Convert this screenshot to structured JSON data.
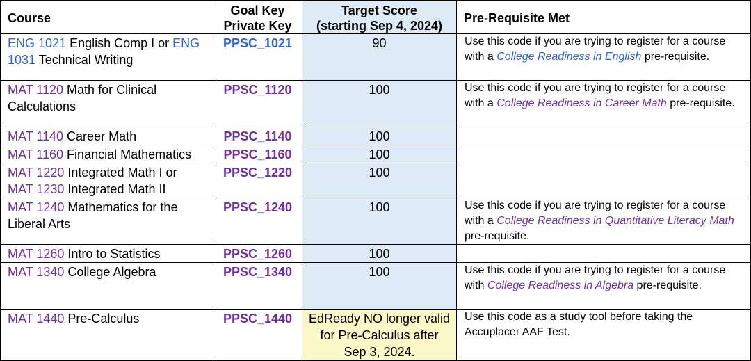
{
  "headers": {
    "course": "Course",
    "key_line1": "Goal Key",
    "key_line2": "Private Key",
    "score_line1": "Target Score",
    "score_line2": "(starting Sep 4, 2024)",
    "prereq": "Pre-Requisite Met"
  },
  "rows": [
    {
      "code1": "ENG 1021",
      "name1": " English Comp I or ",
      "code2": "ENG",
      "name2": "",
      "code3": "1031",
      "name3": " Technical Writing",
      "key": "PPSC_1021",
      "score": "90",
      "pre_a": "Use this code if you are trying to register for a course with a ",
      "pre_link": "College Readiness in English",
      "pre_b": " pre-requisite."
    },
    {
      "code1": "MAT 1120",
      "name1": " Math for Clinical Calculations",
      "key": "PPSC_1120",
      "score": "100",
      "pre_a": "Use this code if you are trying to register for a course with a ",
      "pre_link": "College Readiness in Career Math",
      "pre_b": " pre-requisite."
    },
    {
      "code1": "MAT 1140",
      "name1": " Career Math",
      "key": "PPSC_1140",
      "score": "100"
    },
    {
      "code1": "MAT 1160",
      "name1": " Financial Mathematics",
      "key": "PPSC_1160",
      "score": "100"
    },
    {
      "code1": "MAT 1220",
      "name1": " Integrated Math I or",
      "code2": "MAT 1230",
      "name2": " Integrated Math II",
      "key": "PPSC_1220",
      "score": "100"
    },
    {
      "code1": "MAT 1240",
      "name1": " Mathematics for the Liberal Arts",
      "key": "PPSC_1240",
      "score": "100",
      "pre_a": "Use this code if you are trying to register for a course with a ",
      "pre_link": "College Readiness in Quantitative Literacy Math",
      "pre_b": " pre-requisite."
    },
    {
      "code1": "MAT 1260",
      "name1": " Intro to Statistics",
      "key": "PPSC_1260",
      "score": "100"
    },
    {
      "code1": "MAT 1340",
      "name1": " College Algebra",
      "key": "PPSC_1340",
      "score": "100",
      "pre_a": "Use this code if you are trying to register for a course with ",
      "pre_link": "College Readiness in Algebra",
      "pre_b": " pre-requisite."
    },
    {
      "code1": "MAT 1440",
      "name1": " Pre-Calculus",
      "key": "PPSC_1440",
      "score": "EdReady NO longer valid for Pre-Calculus after Sep 3, 2024.",
      "pre_a": "Use this code as a study tool before taking the Accuplacer AAF Test."
    }
  ],
  "colors": {
    "eng": "#2f63d8",
    "mat": "#7030a0",
    "score_bg": "#dfeaf7",
    "note_bg": "#fdf8c7"
  }
}
